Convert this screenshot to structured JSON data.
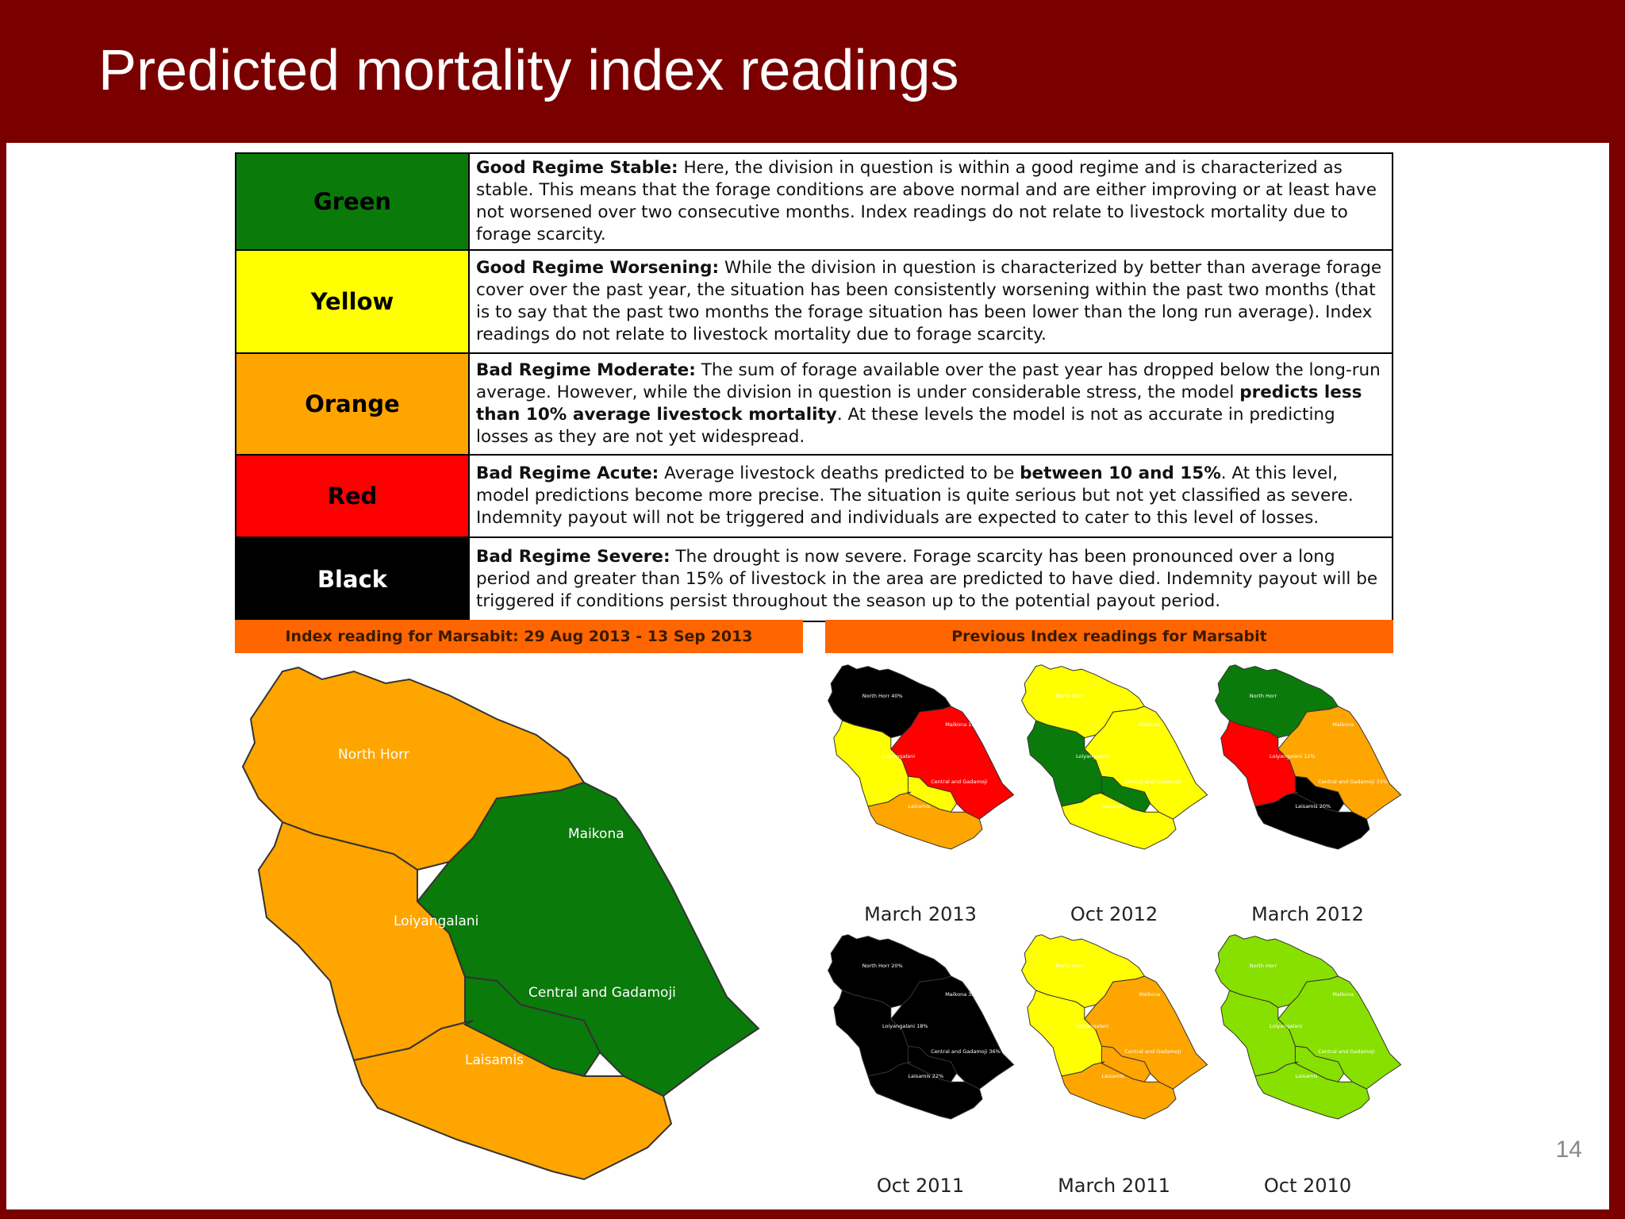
{
  "slide": {
    "title": "Predicted mortality index readings",
    "page_number": "14"
  },
  "colors": {
    "frame": "#7a0000",
    "banner": "#ff6600",
    "green": "#0a7a0a",
    "yellow": "#ffff00",
    "orange": "#ffa500",
    "red": "#ff0000",
    "black": "#000000",
    "lime": "#88e000"
  },
  "legend": [
    {
      "label": "Green",
      "title": "Good Regime Stable:",
      "parts": [
        " Here, the division in question is within a good regime and is characterized as stable. This means that the forage conditions are above normal and are either improving or at least have not worsened over two consecutive months. Index readings do not relate to livestock mortality due to forage scarcity."
      ]
    },
    {
      "label": "Yellow",
      "title": "Good Regime Worsening:",
      "parts": [
        " While the division in question is characterized by better than average forage cover over the past year, the situation has been consistently worsening within the past two months (that is to say that the past two months the forage situation has been lower than the long run average). Index readings do not relate to livestock mortality due to forage scarcity."
      ]
    },
    {
      "label": "Orange",
      "title": "Bad Regime Moderate:",
      "parts": [
        " The sum of forage available over the past year has dropped below the long-run average. However, while the division in question is under considerable stress, the model ",
        "predicts less than 10% average livestock mortality",
        ". At these levels the model is not as accurate in predicting losses as they are not yet widespread."
      ]
    },
    {
      "label": "Red",
      "title": "Bad Regime Acute:",
      "parts": [
        " Average livestock deaths predicted to be ",
        "between 10 and 15%",
        ". At this level, model predictions become more precise. The situation is quite serious but not yet classified as severe. Indemnity payout will not be triggered and individuals are expected to cater to this level of losses."
      ]
    },
    {
      "label": "Black",
      "title": "Bad Regime Severe:",
      "parts": [
        " The drought is now severe. Forage scarcity has been pronounced over a long period and greater than 15% of livestock in the area are predicted to have died. Indemnity payout will be triggered if conditions persist throughout the season up to the potential payout period."
      ]
    }
  ],
  "current_map": {
    "banner": "Index reading for Marsabit: 29 Aug 2013 - 13 Sep 2013",
    "regions": {
      "north_horr": {
        "name": "North Horr",
        "level": "orange"
      },
      "maikona": {
        "name": "Maikona",
        "level": "green"
      },
      "loiyangalani": {
        "name": "Loiyangalani",
        "level": "orange"
      },
      "central": {
        "name": "Central and Gadamoji",
        "level": "green"
      },
      "laisamis": {
        "name": "Laisamis",
        "level": "orange"
      }
    }
  },
  "previous_maps": {
    "banner": "Previous Index readings for Marsabit",
    "maps": [
      {
        "caption": "March 2013",
        "levels": {
          "north_horr": "black",
          "maikona": "red",
          "loiyangalani": "yellow",
          "central": "yellow",
          "laisamis": "orange"
        },
        "labels": {
          "north_horr": "North Horr 40%",
          "maikona": "Maikona 10%",
          "loiyangalani": "Loiyangalani",
          "central": "Central and Gadamoji",
          "laisamis": "Laisamis"
        }
      },
      {
        "caption": "Oct 2012",
        "levels": {
          "north_horr": "yellow",
          "maikona": "yellow",
          "loiyangalani": "green",
          "central": "green",
          "laisamis": "yellow"
        },
        "labels": {
          "north_horr": "North Horr",
          "maikona": "Maikona",
          "loiyangalani": "Loiyangalani",
          "central": "Central and Gadamoji",
          "laisamis": "Laisamis"
        }
      },
      {
        "caption": "March 2012",
        "levels": {
          "north_horr": "green",
          "maikona": "orange",
          "loiyangalani": "red",
          "central": "black",
          "laisamis": "black"
        },
        "labels": {
          "north_horr": "North Horr",
          "maikona": "Maikona",
          "loiyangalani": "Loiyangalani 12%",
          "central": "Central and Gadamoji 33%",
          "laisamis": "Laisamis 20%"
        }
      },
      {
        "caption": "Oct 2011",
        "levels": {
          "north_horr": "black",
          "maikona": "black",
          "loiyangalani": "black",
          "central": "black",
          "laisamis": "black"
        },
        "labels": {
          "north_horr": "North Horr 20%",
          "maikona": "Maikona 33%",
          "loiyangalani": "Loiyangalani 18%",
          "central": "Central and Gadamoji 36%",
          "laisamis": "Laisamis 22%"
        }
      },
      {
        "caption": "March 2011",
        "levels": {
          "north_horr": "yellow",
          "maikona": "orange",
          "loiyangalani": "yellow",
          "central": "orange",
          "laisamis": "orange"
        },
        "labels": {
          "north_horr": "North Horr",
          "maikona": "Maikona",
          "loiyangalani": "Loiyangalani",
          "central": "Central and Gadamoji",
          "laisamis": "Laisamis"
        }
      },
      {
        "caption": "Oct 2010",
        "levels": {
          "north_horr": "lime",
          "maikona": "lime",
          "loiyangalani": "lime",
          "central": "lime",
          "laisamis": "lime"
        },
        "labels": {
          "north_horr": "North Horr",
          "maikona": "Maikona",
          "loiyangalani": "Loiyangalani",
          "central": "Central and Gadamoji",
          "laisamis": "Laisamis"
        }
      }
    ]
  }
}
